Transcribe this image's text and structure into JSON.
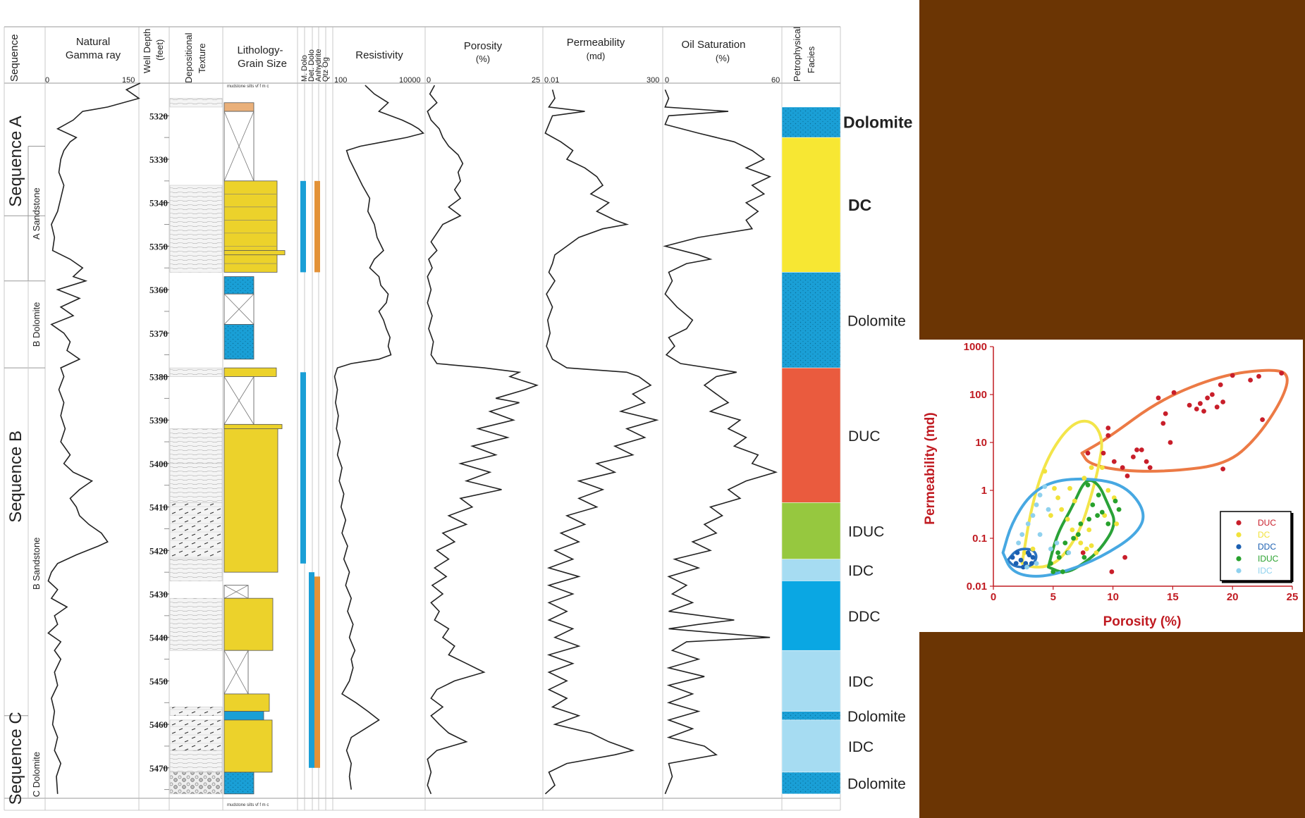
{
  "colors": {
    "background": "#6b3504",
    "paper": "#ffffff",
    "dolomite": "#1a9fd6",
    "dc": "#f7e733",
    "duc": "#ea5b3e",
    "iduc": "#96c83f",
    "idc": "#a6dcf2",
    "ddc": "#0aa7e3",
    "sandstone": "#ecd22b",
    "anhydrite_bar": "#e39237",
    "scatter_axis": "#c01b22",
    "duc_points": "#c81e2a",
    "dc_points": "#f1e23a",
    "ddc_points": "#1b5fb1",
    "iduc_points": "#27a12c",
    "idc_points": "#8fd1ee",
    "duc_outline": "#ec7a45",
    "dc_outline": "#f3e54a",
    "ddc_outline": "#2a73bf",
    "iduc_outline": "#2aa238",
    "idc_outline": "#47a8e2"
  },
  "headers": {
    "sequence": "Sequence",
    "gamma": {
      "label1": "Natural",
      "label2": "Gamma ray",
      "min": "0",
      "max": "150"
    },
    "depth": {
      "label1": "Well Depth",
      "label2": "(feet)"
    },
    "texture": {
      "label1": "Depositional",
      "label2": "Texture"
    },
    "lithology": {
      "label1": "Lithology-",
      "label2": "Grain Size",
      "scale": "mudstone  silts   vf  f  m c"
    },
    "minerals": [
      "M. Dolo",
      "Det. Dolo",
      "Anhydrite",
      "Qtz Og"
    ],
    "resistivity": {
      "label": "Resistivity",
      "min": "100",
      "max": "10000"
    },
    "porosity": {
      "label1": "Porosity",
      "label2": "(%)",
      "min": "0",
      "max": "25"
    },
    "permeability": {
      "label1": "Permeability",
      "label2": "(md)",
      "min": "0.01",
      "max": "300"
    },
    "oil": {
      "label1": "Oil Saturation",
      "label2": "(%)",
      "min": "0",
      "max": "60"
    },
    "facies": {
      "label1": "Petrophysical",
      "label2": "Facies"
    }
  },
  "depth_ticks": [
    "5320",
    "5330",
    "5340",
    "5350",
    "5360",
    "5370",
    "5380",
    "5390",
    "5400",
    "5410",
    "5420",
    "5430",
    "5440",
    "5450",
    "5460",
    "5470"
  ],
  "sequences": [
    {
      "label": "Sequence A"
    },
    {
      "label": "Sequence B"
    },
    {
      "label": "Sequence C"
    }
  ],
  "subunits": [
    {
      "label": "A Sandstone"
    },
    {
      "label": "B Dolomite"
    },
    {
      "label": "B Sandstone"
    },
    {
      "label": "C Dolomite"
    }
  ],
  "facies": [
    {
      "label": "Dolomite",
      "from": 5318,
      "to": 5325,
      "type": "dolomite"
    },
    {
      "label": "DC",
      "from": 5325,
      "to": 5356,
      "type": "dc"
    },
    {
      "label": "Dolomite",
      "from": 5356,
      "to": 5378,
      "type": "dolomite"
    },
    {
      "label": "DUC",
      "from": 5378,
      "to": 5409,
      "type": "duc"
    },
    {
      "label": "IDUC",
      "from": 5409,
      "to": 5422,
      "type": "iduc"
    },
    {
      "label": "IDC",
      "from": 5422,
      "to": 5427,
      "type": "idc"
    },
    {
      "label": "DDC",
      "from": 5427,
      "to": 5443,
      "type": "ddc"
    },
    {
      "label": "IDC",
      "from": 5443,
      "to": 5457,
      "type": "idc"
    },
    {
      "label": "Dolomite",
      "from": 5457,
      "to": 5459,
      "type": "dolomite"
    },
    {
      "label": "IDC",
      "from": 5459,
      "to": 5471,
      "type": "idc"
    },
    {
      "label": "Dolomite",
      "from": 5471,
      "to": 5476,
      "type": "dolomite"
    }
  ],
  "scatter": {
    "xlabel": "Porosity (%)",
    "ylabel": "Permeability (md)",
    "xticks": [
      "0",
      "5",
      "10",
      "15",
      "20",
      "25"
    ],
    "yticks": [
      "0.01",
      "0.1",
      "1",
      "10",
      "100",
      "1000"
    ],
    "legend": [
      "DUC",
      "DC",
      "DDC",
      "IDUC",
      "IDC"
    ]
  },
  "chart_data": {
    "type": "scatter",
    "xlabel": "Porosity (%)",
    "ylabel": "Permeability (md)",
    "xlim": [
      0,
      25
    ],
    "ylim": [
      0.01,
      1000
    ],
    "yscale": "log",
    "legend": "bottom-right",
    "series": [
      {
        "name": "DUC",
        "points": [
          [
            7.9,
            6
          ],
          [
            9.2,
            6
          ],
          [
            10.1,
            4
          ],
          [
            10.8,
            3
          ],
          [
            11.2,
            2
          ],
          [
            11.7,
            5
          ],
          [
            12,
            7
          ],
          [
            12.4,
            7
          ],
          [
            12.8,
            4
          ],
          [
            13.1,
            3
          ],
          [
            13.8,
            85
          ],
          [
            14.2,
            25
          ],
          [
            14.4,
            40
          ],
          [
            14.8,
            10
          ],
          [
            15.1,
            110
          ],
          [
            16.4,
            60
          ],
          [
            17.0,
            50
          ],
          [
            17.3,
            65
          ],
          [
            17.6,
            45
          ],
          [
            17.9,
            85
          ],
          [
            18.3,
            100
          ],
          [
            18.7,
            55
          ],
          [
            19.0,
            160
          ],
          [
            19.2,
            70
          ],
          [
            20.0,
            250
          ],
          [
            21.5,
            200
          ],
          [
            22.2,
            240
          ],
          [
            22.5,
            30
          ],
          [
            24.1,
            280
          ],
          [
            19.2,
            2.8
          ],
          [
            9.6,
            14
          ],
          [
            9.6,
            20
          ],
          [
            11.0,
            0.04
          ],
          [
            9.9,
            0.02
          ],
          [
            7.5,
            0.05
          ]
        ]
      },
      {
        "name": "DC",
        "points": [
          [
            4.3,
            2.5
          ],
          [
            5.1,
            1.1
          ],
          [
            5.4,
            0.7
          ],
          [
            5.7,
            0.4
          ],
          [
            6.2,
            0.25
          ],
          [
            6.6,
            0.15
          ],
          [
            6.9,
            0.1
          ],
          [
            7.3,
            0.08
          ],
          [
            7.8,
            0.06
          ],
          [
            8.2,
            0.07
          ],
          [
            8.6,
            0.05
          ],
          [
            9.1,
            3
          ],
          [
            9.6,
            1
          ],
          [
            10.1,
            0.7
          ],
          [
            9.3,
            0.3
          ],
          [
            10.3,
            0.2
          ],
          [
            8.2,
            3
          ],
          [
            7.6,
            1.8
          ],
          [
            6.4,
            1.1
          ],
          [
            4.8,
            0.3
          ],
          [
            3.3,
            0.06
          ],
          [
            2.6,
            0.05
          ],
          [
            6.8,
            0.6
          ],
          [
            8.0,
            0.15
          ]
        ]
      },
      {
        "name": "DDC",
        "points": [
          [
            1.6,
            0.04
          ],
          [
            2.0,
            0.05
          ],
          [
            2.3,
            0.035
          ],
          [
            2.7,
            0.03
          ],
          [
            3.0,
            0.045
          ],
          [
            3.2,
            0.03
          ],
          [
            2.5,
            0.025
          ],
          [
            1.9,
            0.03
          ],
          [
            2.9,
            0.05
          ],
          [
            3.3,
            0.04
          ]
        ]
      },
      {
        "name": "IDUC",
        "points": [
          [
            4.8,
            0.03
          ],
          [
            5.0,
            0.02
          ],
          [
            5.5,
            0.04
          ],
          [
            5.8,
            0.02
          ],
          [
            6.0,
            0.08
          ],
          [
            6.2,
            0.05
          ],
          [
            6.7,
            0.1
          ],
          [
            7.1,
            0.12
          ],
          [
            7.3,
            0.2
          ],
          [
            7.6,
            0.04
          ],
          [
            8.0,
            0.25
          ],
          [
            8.3,
            0.5
          ],
          [
            8.7,
            0.3
          ],
          [
            9.1,
            0.35
          ],
          [
            9.6,
            0.2
          ],
          [
            10.2,
            0.6
          ],
          [
            10.5,
            0.4
          ],
          [
            7.9,
            1.3
          ],
          [
            8.8,
            0.8
          ],
          [
            5.4,
            0.05
          ]
        ]
      },
      {
        "name": "IDC",
        "points": [
          [
            2.1,
            0.08
          ],
          [
            2.4,
            0.12
          ],
          [
            2.9,
            0.2
          ],
          [
            3.3,
            0.3
          ],
          [
            3.6,
            0.5
          ],
          [
            3.9,
            0.8
          ],
          [
            4.3,
            1.2
          ],
          [
            4.6,
            0.4
          ],
          [
            3.9,
            0.12
          ],
          [
            4.8,
            0.06
          ],
          [
            3.6,
            0.03
          ],
          [
            2.8,
            0.025
          ],
          [
            6.3,
            0.05
          ],
          [
            5.3,
            0.08
          ]
        ]
      }
    ]
  }
}
